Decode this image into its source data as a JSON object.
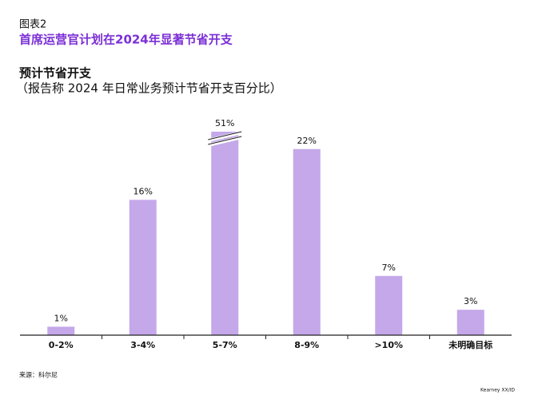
{
  "header": {
    "label": "图表2",
    "title": "首席运营官计划在2024年显著节省开支"
  },
  "chart_data": {
    "type": "bar",
    "title": "预计节省开支",
    "subtitle": "（报告称 2024 年日常业务预计节省开支百分比）",
    "categories": [
      "0-2%",
      "3-4%",
      "5-7%",
      "8-9%",
      ">10%",
      "未明确目标"
    ],
    "values": [
      1,
      16,
      51,
      22,
      7,
      3
    ],
    "value_labels": [
      "1%",
      "16%",
      "51%",
      "22%",
      "7%",
      "3%"
    ],
    "color": "#c4a8e9"
  },
  "footer": {
    "source": "来源：科尔尼",
    "brand": "Kearney XX/ID"
  }
}
